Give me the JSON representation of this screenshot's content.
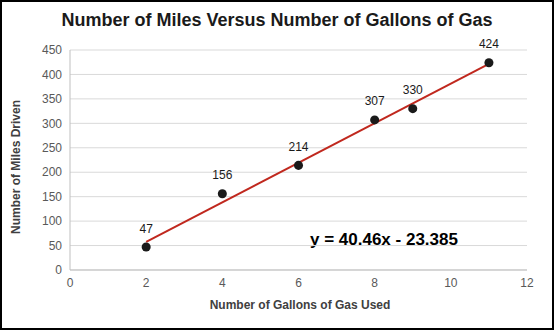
{
  "chart_data": {
    "type": "scatter",
    "title": "Number of Miles Versus Number of Gallons of Gas",
    "x_label": "Number of Gallons of Gas Used",
    "y_label": "Number of Miles Driven",
    "x": [
      2,
      4,
      6,
      8,
      9,
      11
    ],
    "values": [
      47,
      156,
      214,
      307,
      330,
      424
    ],
    "color": "#1a1a1a",
    "marker": "circle",
    "data_labels": true,
    "xlim": [
      0,
      12
    ],
    "xticks": [
      0,
      2,
      4,
      6,
      8,
      10,
      12
    ],
    "ylim": [
      0,
      450
    ],
    "yticks": [
      0,
      50,
      100,
      150,
      200,
      250,
      300,
      350,
      400,
      450
    ],
    "grid": true,
    "trendline": {
      "x": [
        2,
        11
      ],
      "values": [
        57.5,
        421.7
      ],
      "color": "#c0281e",
      "line_style": "solid"
    },
    "annotation": "y = 40.46x - 23.385"
  }
}
